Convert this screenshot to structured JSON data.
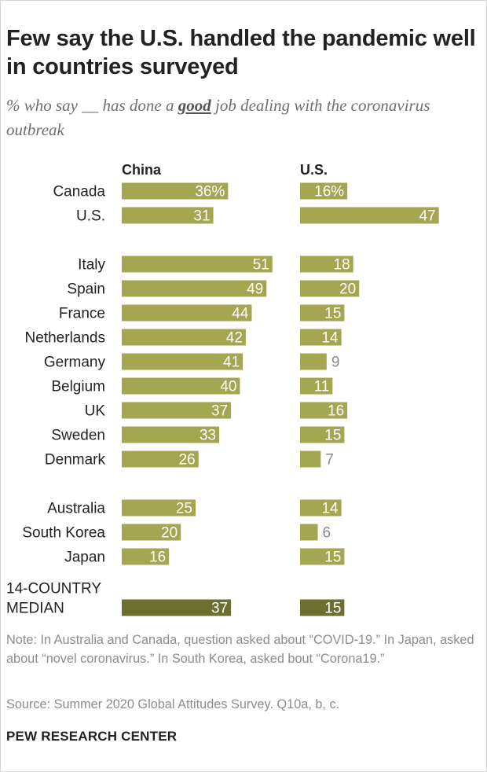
{
  "colors": {
    "bar": "#a4a652",
    "median_bar": "#6b6f30",
    "label_inside": "#ffffff",
    "label_outside": "#8a8a8a",
    "text": "#222222",
    "muted": "#8c8c8c"
  },
  "title": "Few say the U.S. handled the pandemic well in countries surveyed",
  "subtitle": {
    "before": "% who say __ has done a ",
    "emphasis": "good",
    "after": " job dealing with the coronavirus outbreak"
  },
  "chart_data": {
    "type": "bar",
    "orientation": "horizontal",
    "title": "Few say the U.S. handled the pandemic well in countries surveyed",
    "categories": [
      "Canada",
      "U.S.",
      "Italy",
      "Spain",
      "France",
      "Netherlands",
      "Germany",
      "Belgium",
      "UK",
      "Sweden",
      "Denmark",
      "Australia",
      "South Korea",
      "Japan",
      "14-COUNTRY MEDIAN"
    ],
    "category_lines": [
      [
        "Canada"
      ],
      [
        "U.S."
      ],
      [
        "Italy"
      ],
      [
        "Spain"
      ],
      [
        "France"
      ],
      [
        "Netherlands"
      ],
      [
        "Germany"
      ],
      [
        "Belgium"
      ],
      [
        "UK"
      ],
      [
        "Sweden"
      ],
      [
        "Denmark"
      ],
      [
        "Australia"
      ],
      [
        "South Korea"
      ],
      [
        "Japan"
      ],
      [
        "14-COUNTRY",
        "MEDIAN"
      ]
    ],
    "groups": [
      [
        0,
        1
      ],
      [
        2,
        3,
        4,
        5,
        6,
        7,
        8,
        9,
        10
      ],
      [
        11,
        12,
        13
      ],
      [
        14
      ]
    ],
    "series": [
      {
        "name": "China",
        "values": [
          36,
          31,
          51,
          49,
          44,
          42,
          41,
          40,
          37,
          33,
          26,
          25,
          20,
          16,
          37
        ],
        "labels": [
          "36%",
          "31",
          "51",
          "49",
          "44",
          "42",
          "41",
          "40",
          "37",
          "33",
          "26",
          "25",
          "20",
          "16",
          "37"
        ]
      },
      {
        "name": "U.S.",
        "values": [
          16,
          47,
          18,
          20,
          15,
          14,
          9,
          11,
          16,
          15,
          7,
          14,
          6,
          15,
          15
        ],
        "labels": [
          "16%",
          "47",
          "18",
          "20",
          "15",
          "14",
          "9",
          "11",
          "16",
          "15",
          "7",
          "14",
          "6",
          "15",
          "15"
        ]
      }
    ],
    "unit": "%",
    "xlim": [
      0,
      100
    ],
    "highlight_category": "14-COUNTRY MEDIAN"
  },
  "note": "Note: In Australia and Canada, question asked about “COVID-19.” In Japan, asked about “novel coronavirus.” In South Korea, asked bout “Corona19.”",
  "source": "Source: Summer 2020 Global Attitudes Survey. Q10a, b, c.",
  "footer": "PEW RESEARCH CENTER"
}
